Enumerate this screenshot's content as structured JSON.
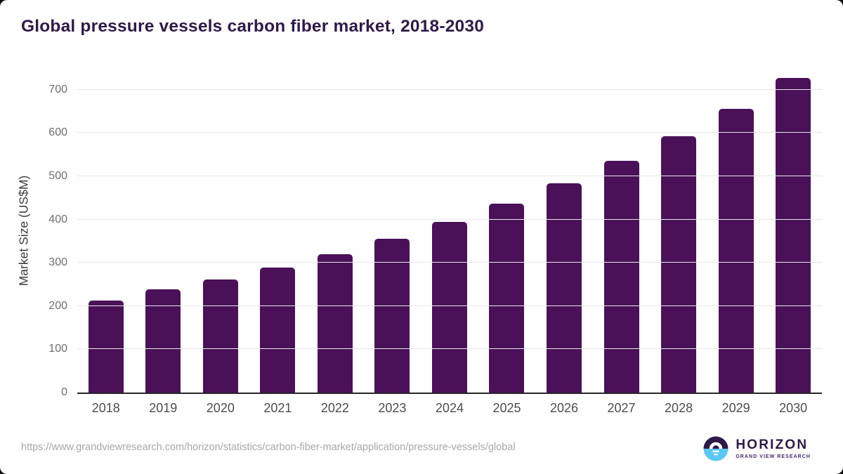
{
  "title": "Global pressure vessels carbon fiber market, 2018-2030",
  "chart_data": {
    "type": "bar",
    "title": "Global pressure vessels carbon fiber market, 2018-2030",
    "categories": [
      "2018",
      "2019",
      "2020",
      "2021",
      "2022",
      "2023",
      "2024",
      "2025",
      "2026",
      "2027",
      "2028",
      "2029",
      "2030"
    ],
    "values": [
      212,
      239,
      262,
      289,
      320,
      356,
      394,
      437,
      483,
      535,
      593,
      656,
      727
    ],
    "xlabel": "",
    "ylabel": "Market Size (US$M)",
    "ylim": [
      0,
      750
    ],
    "yticks": [
      0,
      100,
      200,
      300,
      400,
      500,
      600,
      700
    ],
    "grid": "horizontal",
    "legend": "none",
    "bar_color": "#4a1159",
    "gridline_color": "#e8e8ea",
    "axis_line_color": "#262626"
  },
  "colors": {
    "title": "#2e1a47",
    "y_tick_label": "#6e6e6e",
    "x_tick_label": "#4d4d4d",
    "source_url": "#a8a8a8",
    "logo_purple": "#2e1a47",
    "logo_blue": "#5ac8f2"
  },
  "footer": {
    "source_url": "https://www.grandviewresearch.com/horizon/statistics/carbon-fiber-market/application/pressure-vessels/global"
  },
  "logo": {
    "brand": "HORIZON",
    "subtitle": "GRAND VIEW RESEARCH",
    "icon": "sun-over-water-icon"
  }
}
